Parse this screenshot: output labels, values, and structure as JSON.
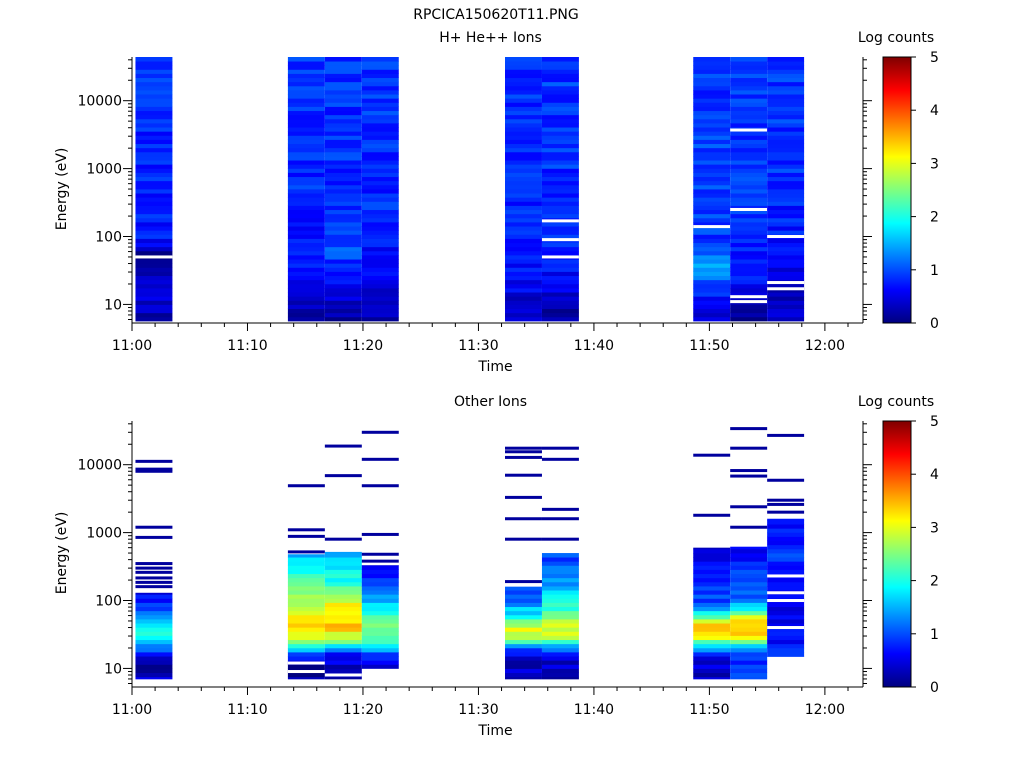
{
  "figure_title": "RPCICA150620T11.PNG",
  "colorscale": {
    "stops": [
      "#00007f",
      "#0000ff",
      "#007fff",
      "#00ffff",
      "#7fff7f",
      "#ffff00",
      "#ff7f00",
      "#ff0000",
      "#7f0000"
    ]
  },
  "chart_data": [
    {
      "type": "heatmap",
      "title": "H+ He++ Ions",
      "xlabel": "Time",
      "ylabel": "Energy (eV)",
      "x_ticks": [
        "11:00",
        "11:10",
        "11:20",
        "11:30",
        "11:40",
        "11:50",
        "12:00"
      ],
      "x_tick_minutes": [
        0,
        10,
        20,
        30,
        40,
        50,
        60
      ],
      "xlim_minutes": [
        0,
        63.3
      ],
      "y_scale": "log",
      "y_ticks": [
        "10",
        "100",
        "1000",
        "10000"
      ],
      "y_tick_values": [
        10,
        100,
        1000,
        10000
      ],
      "ylim": [
        5.7,
        44000
      ],
      "colorbar": {
        "label": "Log counts",
        "ticks": [
          "0",
          "1",
          "2",
          "3",
          "4",
          "5"
        ],
        "range": [
          0,
          5
        ]
      },
      "columns": [
        {
          "start_min": 0.3,
          "end_min": 3.5,
          "profile": [
            [
              7,
              0.15
            ],
            [
              10,
              0.4
            ],
            [
              30,
              0.3
            ],
            [
              50,
              0.1
            ],
            [
              100,
              0.7
            ],
            [
              500,
              0.75
            ],
            [
              2000,
              0.8
            ],
            [
              10000,
              0.85
            ],
            [
              44000,
              0.9
            ]
          ],
          "gaps_ev": [
            50
          ],
          "noise_seed": 1
        },
        {
          "start_min": 13.5,
          "end_min": 16.7,
          "profile": [
            [
              7,
              0.25
            ],
            [
              30,
              0.6
            ],
            [
              100,
              0.75
            ],
            [
              1000,
              0.85
            ],
            [
              44000,
              0.9
            ]
          ],
          "gaps_ev": [],
          "noise_seed": 2
        },
        {
          "start_min": 16.7,
          "end_min": 19.9,
          "profile": [
            [
              7,
              0.15
            ],
            [
              30,
              0.7
            ],
            [
              60,
              1.05
            ],
            [
              100,
              0.9
            ],
            [
              1000,
              0.85
            ],
            [
              44000,
              0.85
            ]
          ],
          "gaps_ev": [],
          "noise_seed": 3
        },
        {
          "start_min": 19.9,
          "end_min": 23.1,
          "profile": [
            [
              7,
              0.3
            ],
            [
              30,
              0.55
            ],
            [
              100,
              0.8
            ],
            [
              1000,
              0.85
            ],
            [
              44000,
              0.9
            ]
          ],
          "gaps_ev": [],
          "noise_seed": 4
        },
        {
          "start_min": 32.3,
          "end_min": 35.5,
          "profile": [
            [
              7,
              0.3
            ],
            [
              30,
              0.7
            ],
            [
              100,
              0.75
            ],
            [
              1000,
              0.8
            ],
            [
              44000,
              0.85
            ]
          ],
          "gaps_ev": [],
          "noise_seed": 5
        },
        {
          "start_min": 35.5,
          "end_min": 38.7,
          "profile": [
            [
              7,
              0.2
            ],
            [
              20,
              0.6
            ],
            [
              50,
              0.7
            ],
            [
              100,
              0.8
            ],
            [
              1000,
              0.85
            ],
            [
              44000,
              0.9
            ]
          ],
          "gaps_ev": [
            50,
            90,
            170
          ],
          "noise_seed": 6
        },
        {
          "start_min": 48.6,
          "end_min": 51.8,
          "profile": [
            [
              7,
              0.5
            ],
            [
              20,
              0.9
            ],
            [
              35,
              1.6
            ],
            [
              60,
              1.1
            ],
            [
              100,
              0.9
            ],
            [
              500,
              0.9
            ],
            [
              2000,
              0.95
            ],
            [
              44000,
              0.85
            ]
          ],
          "gaps_ev": [
            140
          ],
          "noise_seed": 7
        },
        {
          "start_min": 51.8,
          "end_min": 55.0,
          "profile": [
            [
              7,
              0.05
            ],
            [
              15,
              0.4
            ],
            [
              30,
              0.85
            ],
            [
              60,
              0.8
            ],
            [
              200,
              0.9
            ],
            [
              1000,
              0.85
            ],
            [
              44000,
              0.9
            ]
          ],
          "gaps_ev": [
            11,
            13,
            250,
            3700
          ],
          "noise_seed": 8
        },
        {
          "start_min": 55.0,
          "end_min": 58.2,
          "profile": [
            [
              7,
              0.4
            ],
            [
              15,
              0.3
            ],
            [
              40,
              0.5
            ],
            [
              100,
              0.7
            ],
            [
              1000,
              0.85
            ],
            [
              44000,
              0.9
            ]
          ],
          "gaps_ev": [
            17,
            21,
            100
          ],
          "noise_seed": 9
        }
      ]
    },
    {
      "type": "heatmap",
      "title": "Other Ions",
      "xlabel": "Time",
      "ylabel": "Energy (eV)",
      "x_ticks": [
        "11:00",
        "11:10",
        "11:20",
        "11:30",
        "11:40",
        "11:50",
        "12:00"
      ],
      "x_tick_minutes": [
        0,
        10,
        20,
        30,
        40,
        50,
        60
      ],
      "xlim_minutes": [
        0,
        63.3
      ],
      "y_scale": "log",
      "y_ticks": [
        "10",
        "100",
        "1000",
        "10000"
      ],
      "y_tick_values": [
        10,
        100,
        1000,
        10000
      ],
      "ylim": [
        5.7,
        44000
      ],
      "colorbar": {
        "label": "Log counts",
        "ticks": [
          "0",
          "1",
          "2",
          "3",
          "4",
          "5"
        ],
        "range": [
          0,
          5
        ]
      },
      "columns": [
        {
          "start_min": 0.3,
          "end_min": 3.5,
          "dense_range_ev": [
            7,
            130
          ],
          "profile": [
            [
              7,
              0.4
            ],
            [
              12,
              0.1
            ],
            [
              20,
              1.2
            ],
            [
              30,
              1.8
            ],
            [
              40,
              2.0
            ],
            [
              50,
              1.6
            ],
            [
              80,
              0.9
            ],
            [
              130,
              0.6
            ]
          ],
          "gaps_ev": [],
          "sparse_lines_ev": [
            160,
            185,
            215,
            260,
            300,
            350,
            850,
            1200,
            8000,
            8600,
            11200
          ],
          "noise_seed": 11
        },
        {
          "start_min": 13.5,
          "end_min": 16.7,
          "dense_range_ev": [
            7,
            480
          ],
          "profile": [
            [
              7,
              0.2
            ],
            [
              11,
              0.05
            ],
            [
              16,
              1.0
            ],
            [
              25,
              2.7
            ],
            [
              40,
              3.2
            ],
            [
              60,
              3.05
            ],
            [
              100,
              2.6
            ],
            [
              200,
              2.2
            ],
            [
              300,
              1.9
            ],
            [
              480,
              1.5
            ]
          ],
          "gaps_ev": [
            9,
            12
          ],
          "sparse_lines_ev": [
            520,
            880,
            1100,
            4900
          ],
          "noise_seed": 12
        },
        {
          "start_min": 16.7,
          "end_min": 19.9,
          "dense_range_ev": [
            7,
            520
          ],
          "profile": [
            [
              7,
              0.1
            ],
            [
              10,
              0.3
            ],
            [
              16,
              0.7
            ],
            [
              25,
              2.4
            ],
            [
              40,
              3.5
            ],
            [
              55,
              3.3
            ],
            [
              80,
              3.1
            ],
            [
              120,
              2.8
            ],
            [
              200,
              2.0
            ],
            [
              520,
              1.4
            ]
          ],
          "gaps_ev": [
            8
          ],
          "sparse_lines_ev": [
            800,
            6900,
            18800
          ],
          "noise_seed": 13
        },
        {
          "start_min": 19.9,
          "end_min": 23.1,
          "dense_range_ev": [
            10,
            330
          ],
          "profile": [
            [
              10,
              0.3
            ],
            [
              14,
              0.7
            ],
            [
              20,
              1.5
            ],
            [
              30,
              2.5
            ],
            [
              50,
              2.3
            ],
            [
              80,
              1.8
            ],
            [
              130,
              1.2
            ],
            [
              330,
              0.6
            ]
          ],
          "gaps_ev": [],
          "sparse_lines_ev": [
            380,
            480,
            940,
            4900,
            12000,
            30000
          ],
          "noise_seed": 14
        },
        {
          "start_min": 32.3,
          "end_min": 35.5,
          "dense_range_ev": [
            7,
            160
          ],
          "profile": [
            [
              7,
              0.3
            ],
            [
              15,
              0.4
            ],
            [
              20,
              1.2
            ],
            [
              30,
              2.8
            ],
            [
              40,
              3.0
            ],
            [
              60,
              1.9
            ],
            [
              100,
              1.2
            ],
            [
              160,
              1.0
            ]
          ],
          "gaps_ev": [],
          "sparse_lines_ev": [
            190,
            800,
            1600,
            3300,
            7000,
            12800,
            15500,
            17500
          ],
          "noise_seed": 15
        },
        {
          "start_min": 35.5,
          "end_min": 38.7,
          "dense_range_ev": [
            7,
            500
          ],
          "profile": [
            [
              7,
              0.3
            ],
            [
              15,
              0.4
            ],
            [
              20,
              1.3
            ],
            [
              30,
              2.8
            ],
            [
              40,
              3.0
            ],
            [
              60,
              2.3
            ],
            [
              100,
              2.0
            ],
            [
              200,
              1.3
            ],
            [
              500,
              0.9
            ]
          ],
          "gaps_ev": [],
          "sparse_lines_ev": [
            800,
            1600,
            2200,
            12000,
            17500
          ],
          "noise_seed": 16
        },
        {
          "start_min": 48.6,
          "end_min": 51.8,
          "dense_range_ev": [
            7,
            600
          ],
          "profile": [
            [
              7,
              0.3
            ],
            [
              15,
              0.5
            ],
            [
              20,
              1.6
            ],
            [
              30,
              3.1
            ],
            [
              40,
              3.7
            ],
            [
              50,
              3.0
            ],
            [
              70,
              1.6
            ],
            [
              100,
              1.0
            ],
            [
              600,
              0.5
            ]
          ],
          "gaps_ev": [],
          "sparse_lines_ev": [
            1800,
            13800
          ],
          "noise_seed": 17
        },
        {
          "start_min": 51.8,
          "end_min": 55.0,
          "dense_range_ev": [
            7,
            620
          ],
          "profile": [
            [
              7,
              0.9
            ],
            [
              15,
              0.8
            ],
            [
              20,
              1.5
            ],
            [
              30,
              3.1
            ],
            [
              40,
              3.5
            ],
            [
              55,
              3.2
            ],
            [
              70,
              2.0
            ],
            [
              100,
              1.2
            ],
            [
              300,
              0.8
            ],
            [
              620,
              0.6
            ]
          ],
          "gaps_ev": [],
          "sparse_lines_ev": [
            1200,
            2400,
            6800,
            8200,
            17500,
            34000
          ],
          "noise_seed": 18
        },
        {
          "start_min": 55.0,
          "end_min": 58.2,
          "dense_range_ev": [
            15,
            1600
          ],
          "profile": [
            [
              15,
              0.9
            ],
            [
              25,
              0.6
            ],
            [
              35,
              1.0
            ],
            [
              50,
              0.5
            ],
            [
              100,
              0.4
            ],
            [
              200,
              0.8
            ],
            [
              500,
              0.9
            ],
            [
              1600,
              0.6
            ]
          ],
          "gaps_ev": [
            40,
            100,
            130,
            230
          ],
          "sparse_lines_ev": [
            2000,
            2600,
            3000,
            5900,
            27000
          ],
          "noise_seed": 19
        }
      ]
    }
  ]
}
